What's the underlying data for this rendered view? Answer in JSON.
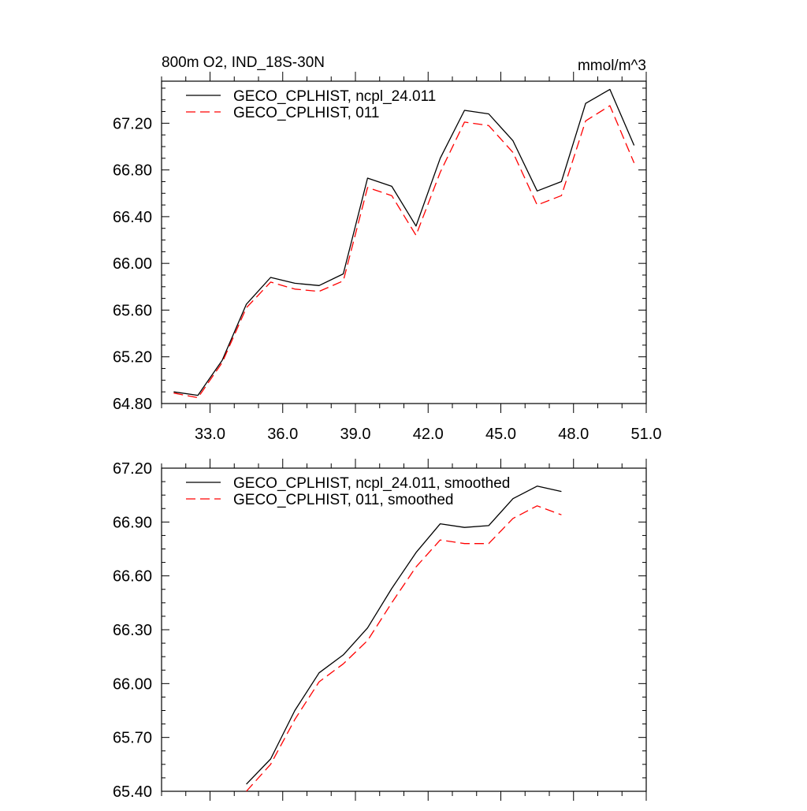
{
  "chart_data": [
    {
      "type": "line",
      "title_left": "800m O2, IND_18S-30N",
      "title_right": "mmol/m^3",
      "xlim": [
        31.0,
        51.0
      ],
      "ylim": [
        64.8,
        67.56
      ],
      "xticks": [
        33,
        36,
        39,
        42,
        45,
        48,
        51
      ],
      "xtick_labels": [
        "33.0",
        "36.0",
        "39.0",
        "42.0",
        "45.0",
        "48.0",
        "51.0"
      ],
      "yticks": [
        64.8,
        65.2,
        65.6,
        66.0,
        66.4,
        66.8,
        67.2
      ],
      "ytick_labels": [
        "64.80",
        "65.20",
        "65.60",
        "66.00",
        "66.40",
        "66.80",
        "67.20"
      ],
      "x": [
        31.5,
        32.5,
        33.5,
        34.5,
        35.5,
        36.5,
        37.5,
        38.5,
        39.5,
        40.5,
        41.5,
        42.5,
        43.5,
        44.5,
        45.5,
        46.5,
        47.5,
        48.5,
        49.5,
        50.5
      ],
      "series": [
        {
          "name": "GECO_CPLHIST, ncpl_24.011",
          "color": "#000000",
          "dash": "solid",
          "values": [
            64.9,
            64.87,
            65.17,
            65.65,
            65.88,
            65.83,
            65.81,
            65.91,
            66.73,
            66.66,
            66.32,
            66.9,
            67.31,
            67.28,
            67.05,
            66.62,
            66.7,
            67.37,
            67.49,
            67.01
          ]
        },
        {
          "name": "GECO_CPLHIST, 011",
          "color": "#ff0000",
          "dash": "dashed",
          "values": [
            64.89,
            64.85,
            65.15,
            65.62,
            65.84,
            65.78,
            65.76,
            65.85,
            66.65,
            66.58,
            66.24,
            66.78,
            67.21,
            67.18,
            66.95,
            66.5,
            66.58,
            67.22,
            67.35,
            66.86
          ]
        }
      ]
    },
    {
      "type": "line",
      "xlim": [
        31.0,
        51.0
      ],
      "ylim": [
        65.4,
        67.2
      ],
      "xticks": [
        33,
        36,
        39,
        42,
        45,
        48,
        51
      ],
      "yticks": [
        65.4,
        65.7,
        66.0,
        66.3,
        66.6,
        66.9,
        67.2
      ],
      "ytick_labels": [
        "65.40",
        "65.70",
        "66.00",
        "66.30",
        "66.60",
        "66.90",
        "67.20"
      ],
      "x": [
        34.5,
        35.5,
        36.5,
        37.5,
        38.5,
        39.5,
        40.5,
        41.5,
        42.5,
        43.5,
        44.5,
        45.5,
        46.5,
        47.5
      ],
      "series": [
        {
          "name": "GECO_CPLHIST, ncpl_24.011, smoothed",
          "color": "#000000",
          "dash": "solid",
          "values": [
            65.44,
            65.58,
            65.85,
            66.06,
            66.16,
            66.31,
            66.53,
            66.73,
            66.89,
            66.87,
            66.88,
            67.03,
            67.1,
            67.07
          ]
        },
        {
          "name": "GECO_CPLHIST, 011, smoothed",
          "color": "#ff0000",
          "dash": "dashed",
          "values": [
            65.4,
            65.55,
            65.8,
            66.01,
            66.11,
            66.24,
            66.45,
            66.65,
            66.8,
            66.78,
            66.78,
            66.92,
            66.99,
            66.94
          ]
        }
      ]
    }
  ]
}
